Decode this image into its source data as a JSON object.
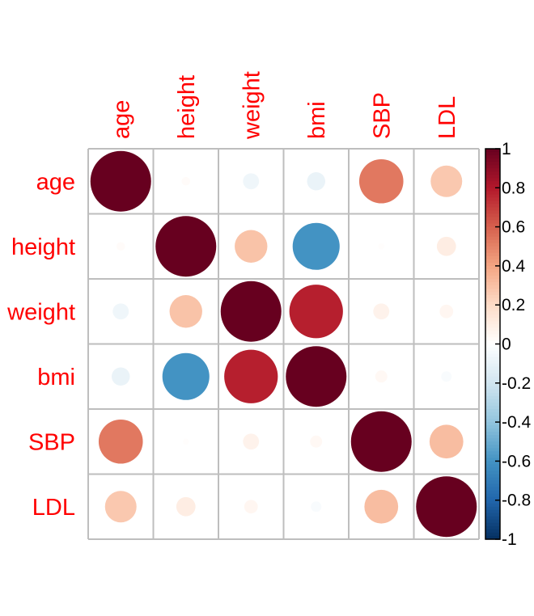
{
  "chart_data": {
    "type": "heatmap",
    "method": "circle",
    "variables": [
      "age",
      "height",
      "weight",
      "bmi",
      "SBP",
      "LDL"
    ],
    "matrix": [
      [
        1.0,
        0.02,
        -0.07,
        -0.09,
        0.53,
        0.27
      ],
      [
        0.02,
        1.0,
        0.29,
        -0.6,
        0.01,
        0.1
      ],
      [
        -0.07,
        0.29,
        1.0,
        0.78,
        0.07,
        0.05
      ],
      [
        -0.09,
        -0.6,
        0.78,
        1.0,
        0.04,
        -0.03
      ],
      [
        0.53,
        0.01,
        0.07,
        0.04,
        1.0,
        0.31
      ],
      [
        0.27,
        0.1,
        0.05,
        -0.03,
        0.31,
        1.0
      ]
    ],
    "color_scale": {
      "range": [
        -1,
        1
      ],
      "ticks": [
        "1",
        "0.8",
        "0.6",
        "0.4",
        "0.2",
        "0",
        "-0.2",
        "-0.4",
        "-0.6",
        "-0.8",
        "-1"
      ],
      "colors": [
        "#67001F",
        "#B2182B",
        "#D6604D",
        "#F4A582",
        "#FDDBC7",
        "#FFFFFF",
        "#D1E5F0",
        "#92C5DE",
        "#4393C3",
        "#2166AC",
        "#053061"
      ]
    },
    "label_color": "#FF0000",
    "grid_color": "#BEBEBE"
  }
}
